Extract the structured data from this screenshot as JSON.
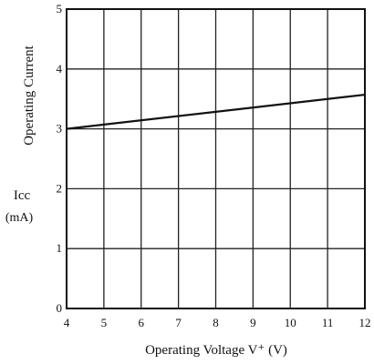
{
  "chart_data": {
    "type": "line",
    "title": "",
    "xlabel": "Operating Voltage   V⁺ (V)",
    "ylabel": "Operating Current",
    "ylabel_symbol": "Icc",
    "ylabel_unit": "(mA)",
    "xlim": [
      4,
      12
    ],
    "ylim": [
      0,
      5
    ],
    "x_ticks": [
      "4",
      "5",
      "6",
      "7",
      "8",
      "9",
      "10",
      "11",
      "12"
    ],
    "y_ticks": [
      "0",
      "1",
      "2",
      "3",
      "4",
      "5"
    ],
    "grid": true,
    "series": [
      {
        "x": [
          4,
          12
        ],
        "y": [
          3.0,
          3.57
        ]
      }
    ]
  }
}
